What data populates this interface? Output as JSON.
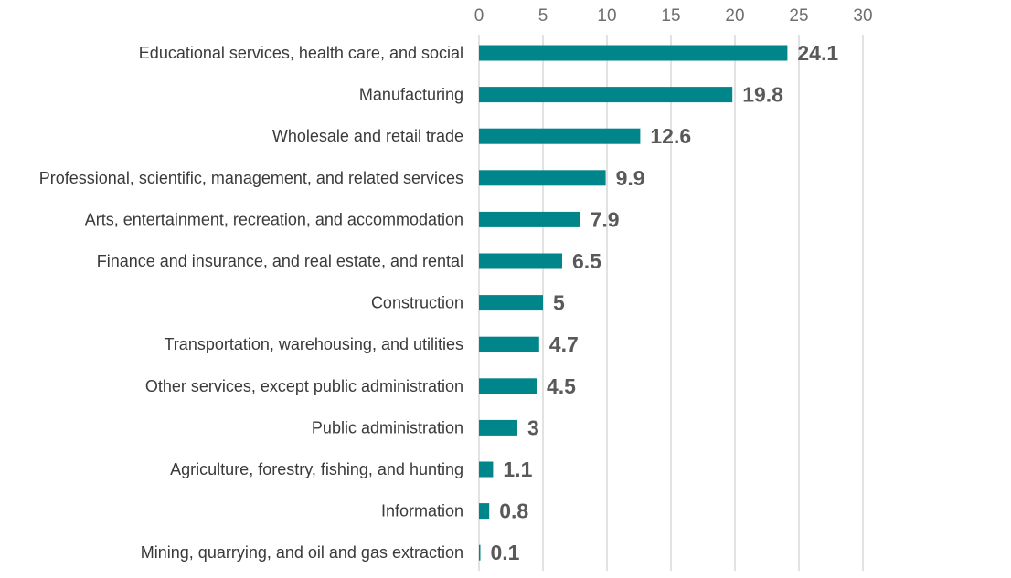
{
  "chart_data": {
    "type": "bar",
    "orientation": "horizontal",
    "title": "",
    "xlabel": "",
    "ylabel": "",
    "xlim": [
      0,
      30
    ],
    "ticks": [
      0,
      5,
      10,
      15,
      20,
      25,
      30
    ],
    "axis_position": "top",
    "grid": true,
    "bar_color": "#00868a",
    "categories": [
      "Educational services, health care, and social",
      "Manufacturing",
      "Wholesale and retail trade",
      "Professional, scientific, management, and related services",
      "Arts, entertainment, recreation, and accommodation",
      "Finance and insurance, and real estate, and rental",
      "Construction",
      "Transportation, warehousing, and utilities",
      "Other services, except public administration",
      "Public administration",
      "Agriculture, forestry, fishing, and hunting",
      "Information",
      "Mining, quarrying, and oil and gas extraction"
    ],
    "values": [
      24.1,
      19.8,
      12.6,
      9.9,
      7.9,
      6.5,
      5,
      4.7,
      4.5,
      3,
      1.1,
      0.8,
      0.1
    ],
    "value_labels": [
      "24.1",
      "19.8",
      "12.6",
      "9.9",
      "7.9",
      "6.5",
      "5",
      "4.7",
      "4.5",
      "3",
      "1.1",
      "0.8",
      "0.1"
    ]
  }
}
